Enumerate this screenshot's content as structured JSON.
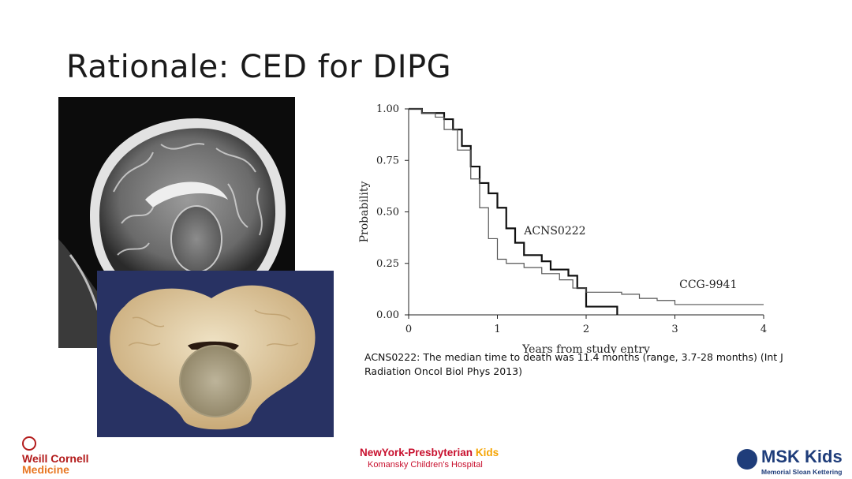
{
  "slide": {
    "title": "Rationale: CED for DIPG",
    "caption": "ACNS0222: The median time to death was 11.4 months (range, 3.7-28 months) (Int J Radiation Oncol Biol Phys 2013)"
  },
  "images": {
    "mri": "sagittal-brain-mri",
    "specimen": "brainstem-pathology-specimen"
  },
  "chart_data": {
    "type": "line",
    "ylabel": "Probability",
    "xlabel": "Years from study entry",
    "xlim": [
      0,
      4
    ],
    "ylim": [
      0,
      1
    ],
    "x_ticks": [
      "0",
      "1",
      "2",
      "3",
      "4"
    ],
    "y_ticks": [
      "0.00",
      "0.25",
      "0.50",
      "0.75",
      "1.00"
    ],
    "grid": false,
    "series": [
      {
        "name": "ACNS0222",
        "color": "#111111",
        "points": [
          [
            0,
            1.0
          ],
          [
            0.1,
            1.0
          ],
          [
            0.15,
            0.98
          ],
          [
            0.35,
            0.98
          ],
          [
            0.4,
            0.95
          ],
          [
            0.5,
            0.9
          ],
          [
            0.6,
            0.82
          ],
          [
            0.7,
            0.72
          ],
          [
            0.8,
            0.64
          ],
          [
            0.9,
            0.59
          ],
          [
            1.0,
            0.52
          ],
          [
            1.1,
            0.42
          ],
          [
            1.2,
            0.35
          ],
          [
            1.3,
            0.29
          ],
          [
            1.5,
            0.26
          ],
          [
            1.6,
            0.22
          ],
          [
            1.8,
            0.19
          ],
          [
            1.9,
            0.13
          ],
          [
            2.0,
            0.09
          ],
          [
            2.0,
            0.04
          ],
          [
            2.35,
            0.04
          ],
          [
            2.35,
            0.0
          ]
        ]
      },
      {
        "name": "CCG-9941",
        "color": "#555555",
        "points": [
          [
            0,
            1.0
          ],
          [
            0.1,
            1.0
          ],
          [
            0.15,
            0.98
          ],
          [
            0.3,
            0.96
          ],
          [
            0.4,
            0.9
          ],
          [
            0.55,
            0.8
          ],
          [
            0.7,
            0.66
          ],
          [
            0.8,
            0.52
          ],
          [
            0.9,
            0.37
          ],
          [
            1.0,
            0.27
          ],
          [
            1.1,
            0.25
          ],
          [
            1.3,
            0.23
          ],
          [
            1.5,
            0.2
          ],
          [
            1.7,
            0.17
          ],
          [
            1.85,
            0.13
          ],
          [
            2.0,
            0.11
          ],
          [
            2.4,
            0.1
          ],
          [
            2.6,
            0.08
          ],
          [
            2.8,
            0.07
          ],
          [
            3.0,
            0.05
          ],
          [
            4.0,
            0.05
          ]
        ]
      }
    ]
  },
  "logos": {
    "wcm_line1": "Weill Cornell",
    "wcm_line2": "Medicine",
    "nyp_name": "NewYork-Presbyterian",
    "nyp_kids": "Kids",
    "nyp_sub": "Komansky Children's Hospital",
    "msk_name": "MSK Kids",
    "msk_sub": "Memorial Sloan Kettering"
  }
}
